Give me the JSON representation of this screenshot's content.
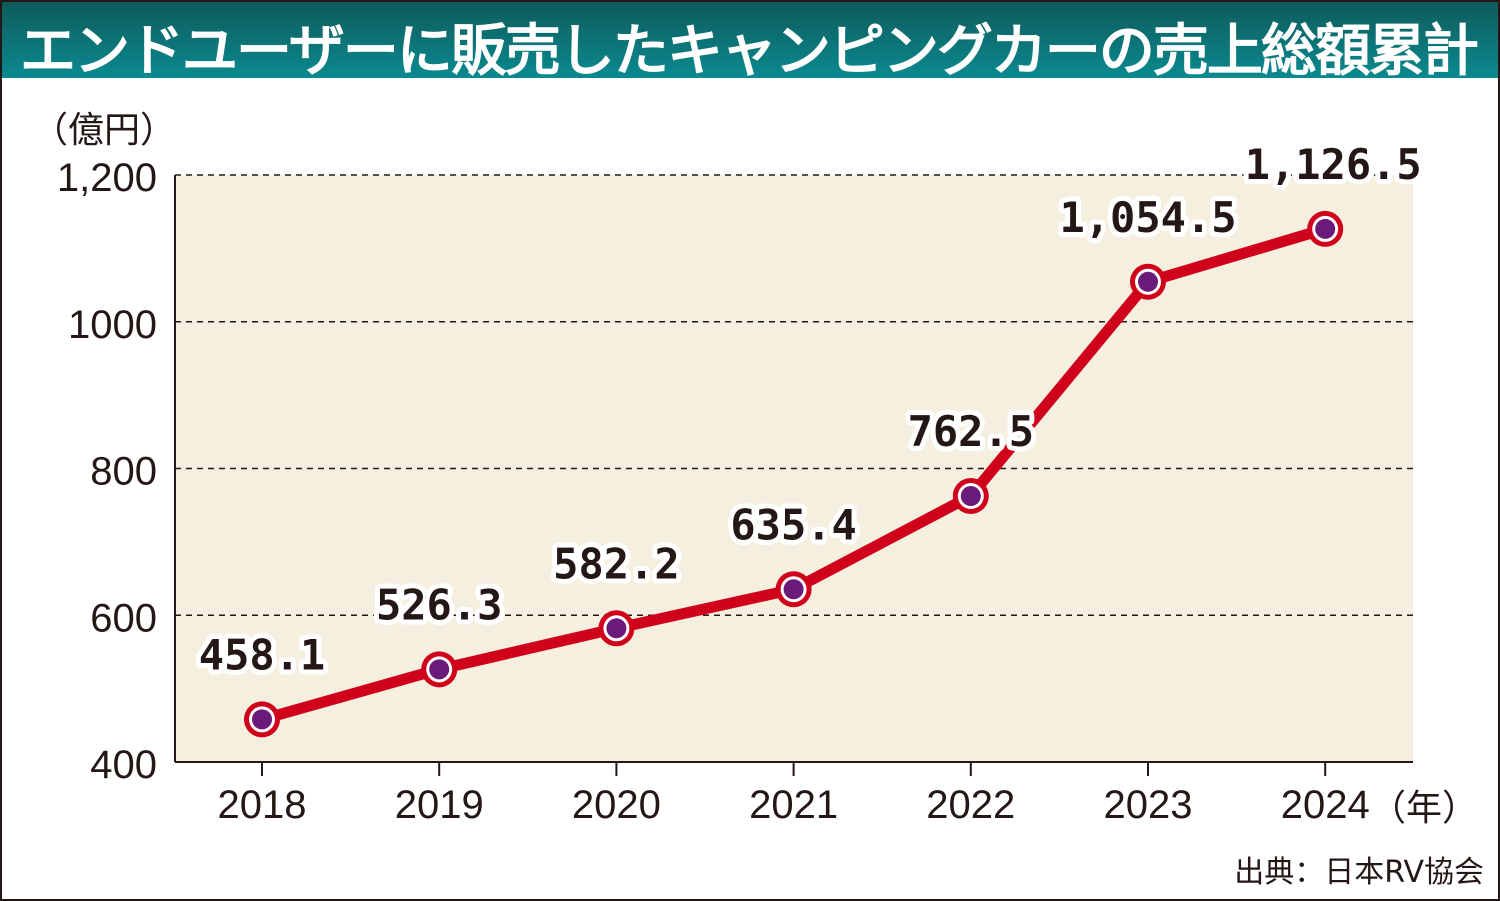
{
  "chart_data": {
    "type": "line",
    "title": "エンドユーザーに販売したキャンピングカーの売上総額累計",
    "ylabel": "（億円）",
    "xlabel": "（年）",
    "categories": [
      "2018",
      "2019",
      "2020",
      "2021",
      "2022",
      "2023",
      "2024"
    ],
    "values": [
      458.1,
      526.3,
      582.2,
      635.4,
      762.5,
      1054.5,
      1126.5
    ],
    "data_labels": [
      "458.1",
      "526.3",
      "582.2",
      "635.4",
      "762.5",
      "1,054.5",
      "1,126.5"
    ],
    "ylim": [
      400,
      1200
    ],
    "yticks": [
      400,
      600,
      800,
      1000,
      1200
    ],
    "ytick_labels": [
      "400",
      "600",
      "800",
      "1000",
      "1,200"
    ],
    "grid": true,
    "source": "出典：日本RV協会",
    "colors": {
      "line": "#d0021b",
      "marker": "#6a1a78",
      "plot_bg": "#f5efdf",
      "title_bg": "#0a7a80"
    }
  }
}
